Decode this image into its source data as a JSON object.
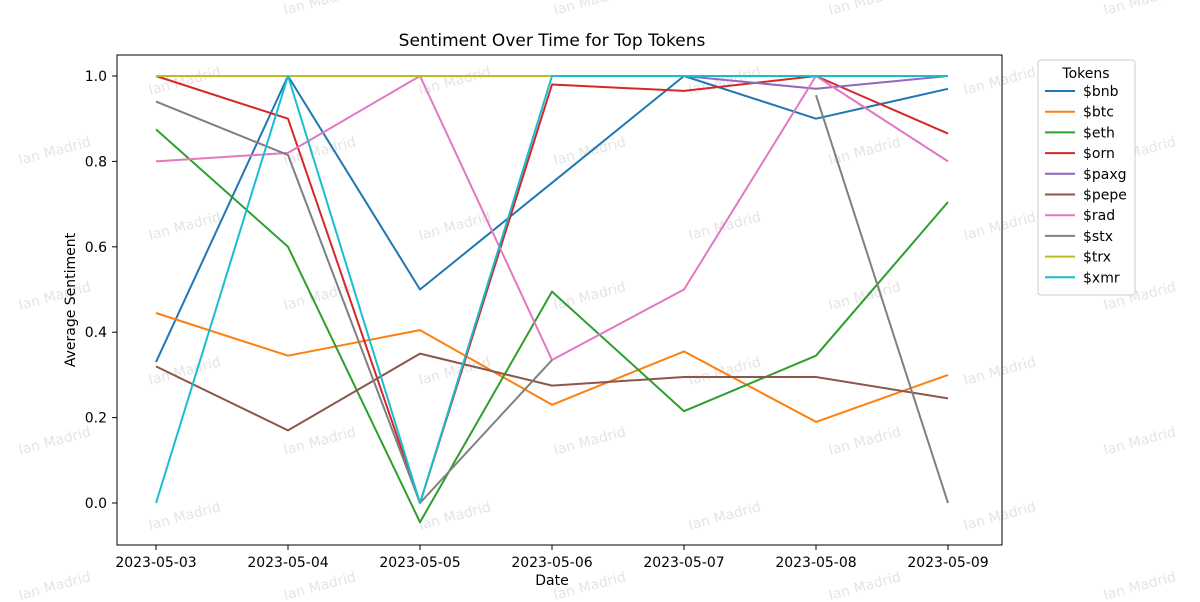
{
  "watermark": "Ian Madrid",
  "chart_data": {
    "type": "line",
    "title": "Sentiment Over Time for Top Tokens",
    "xlabel": "Date",
    "ylabel": "Average Sentiment",
    "x": [
      "2023-05-03",
      "2023-05-04",
      "2023-05-05",
      "2023-05-06",
      "2023-05-07",
      "2023-05-08",
      "2023-05-09"
    ],
    "ylim": [
      -0.1,
      1.06
    ],
    "yticks": [
      "0.0",
      "0.2",
      "0.4",
      "0.6",
      "0.8",
      "1.0"
    ],
    "ytick_values": [
      0.0,
      0.2,
      0.4,
      0.6,
      0.8,
      1.0
    ],
    "grid": false,
    "legend_title": "Tokens",
    "legend_position": "outside-right-top",
    "series": [
      {
        "name": "$bnb",
        "color": "#1f77b4",
        "values": [
          0.33,
          1.0,
          0.5,
          0.75,
          1.0,
          0.9,
          0.97
        ]
      },
      {
        "name": "$btc",
        "color": "#ff7f0e",
        "values": [
          0.445,
          0.345,
          0.405,
          0.23,
          0.355,
          0.19,
          0.3
        ]
      },
      {
        "name": "$eth",
        "color": "#2ca02c",
        "values": [
          0.875,
          0.6,
          -0.045,
          0.495,
          0.215,
          0.345,
          0.705
        ]
      },
      {
        "name": "$orn",
        "color": "#d62728",
        "values": [
          1.0,
          0.9,
          0.0,
          0.98,
          0.965,
          1.0,
          0.865
        ]
      },
      {
        "name": "$paxg",
        "color": "#9467bd",
        "values": [
          1.0,
          1.0,
          1.0,
          1.0,
          1.0,
          0.97,
          1.0
        ]
      },
      {
        "name": "$pepe",
        "color": "#8c564b",
        "values": [
          0.32,
          0.17,
          0.35,
          0.275,
          0.295,
          0.295,
          0.245
        ]
      },
      {
        "name": "$rad",
        "color": "#e377c2",
        "values": [
          0.8,
          0.82,
          1.0,
          0.335,
          0.5,
          1.0,
          0.8
        ]
      },
      {
        "name": "$stx",
        "color": "#7f7f7f",
        "values": [
          0.94,
          0.815,
          0.0,
          0.335,
          null,
          0.955,
          0.0
        ]
      },
      {
        "name": "$trx",
        "color": "#bcbd22",
        "values": [
          1.0,
          1.0,
          1.0,
          1.0,
          1.0,
          1.0,
          1.0
        ]
      },
      {
        "name": "$xmr",
        "color": "#17becf",
        "values": [
          0.0,
          1.0,
          0.0,
          1.0,
          1.0,
          1.0,
          1.0
        ]
      }
    ]
  }
}
